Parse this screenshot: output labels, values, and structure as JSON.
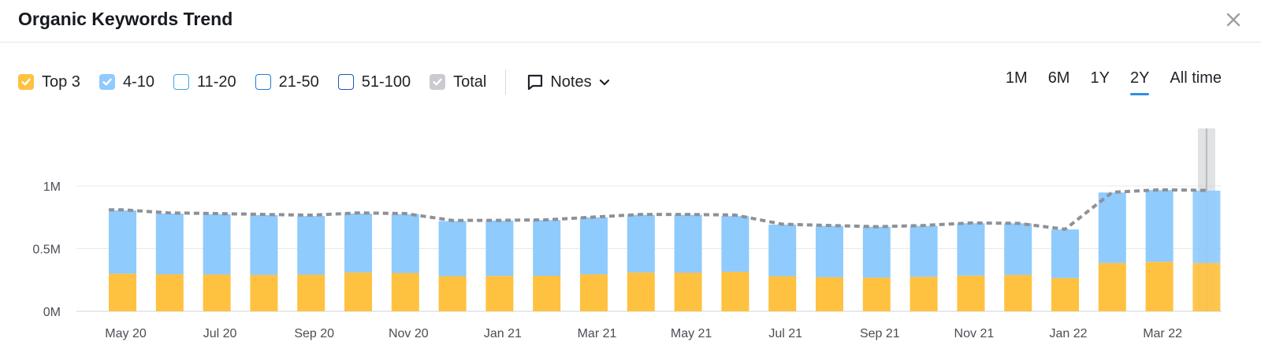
{
  "header": {
    "title": "Organic Keywords Trend"
  },
  "legend": [
    {
      "label": "Top 3",
      "checked": true,
      "color": "#FFC140",
      "border": "#FFC140",
      "check": "#ffffff"
    },
    {
      "label": "4-10",
      "checked": true,
      "color": "#8FCBFC",
      "border": "#8FCBFC",
      "check": "#ffffff"
    },
    {
      "label": "11-20",
      "checked": false,
      "color": "#ffffff",
      "border": "#3AA8E8",
      "check": "#ffffff"
    },
    {
      "label": "21-50",
      "checked": false,
      "color": "#ffffff",
      "border": "#1E7FD6",
      "check": "#ffffff"
    },
    {
      "label": "51-100",
      "checked": false,
      "color": "#ffffff",
      "border": "#1C55B8",
      "check": "#ffffff"
    },
    {
      "label": "Total",
      "checked": true,
      "color": "#C9CBD0",
      "border": "#C9CBD0",
      "check": "#ffffff"
    }
  ],
  "notes": {
    "label": "Notes"
  },
  "ranges": [
    {
      "label": "1M",
      "active": false
    },
    {
      "label": "6M",
      "active": false
    },
    {
      "label": "1Y",
      "active": false
    },
    {
      "label": "2Y",
      "active": true
    },
    {
      "label": "All time",
      "active": false
    }
  ],
  "chart_data": {
    "type": "bar",
    "stacked": true,
    "x_tick_labels": [
      "May 20",
      "Jul 20",
      "Sep 20",
      "Nov 20",
      "Jan 21",
      "Mar 21",
      "May 21",
      "Jul 21",
      "Sep 21",
      "Nov 21",
      "Jan 22",
      "Mar 22"
    ],
    "y_tick_labels": [
      "0M",
      "0.5M",
      "1M"
    ],
    "ylim": [
      0,
      1000000
    ],
    "series": [
      {
        "name": "Top 3",
        "color": "#FFC140",
        "values": [
          300000,
          295000,
          293000,
          290000,
          292000,
          310000,
          305000,
          280000,
          282000,
          283000,
          295000,
          310000,
          308000,
          315000,
          280000,
          272000,
          268000,
          275000,
          285000,
          290000,
          265000,
          385000,
          395000,
          385000
        ]
      },
      {
        "name": "4-10",
        "color": "#8FCBFC",
        "values": [
          505000,
          485000,
          482000,
          478000,
          468000,
          470000,
          470000,
          440000,
          442000,
          445000,
          455000,
          460000,
          462000,
          445000,
          412000,
          410000,
          407000,
          407000,
          418000,
          412000,
          388000,
          563000,
          572000,
          578000
        ]
      }
    ],
    "total_line": {
      "name": "Total",
      "color": "#8E9096",
      "values": [
        810000,
        785000,
        780000,
        773000,
        767000,
        785000,
        780000,
        725000,
        726000,
        730000,
        752000,
        773000,
        773000,
        768000,
        695000,
        685000,
        675000,
        685000,
        705000,
        702000,
        655000,
        950000,
        970000,
        965000
      ]
    },
    "grid": true,
    "highlight_last": true
  }
}
